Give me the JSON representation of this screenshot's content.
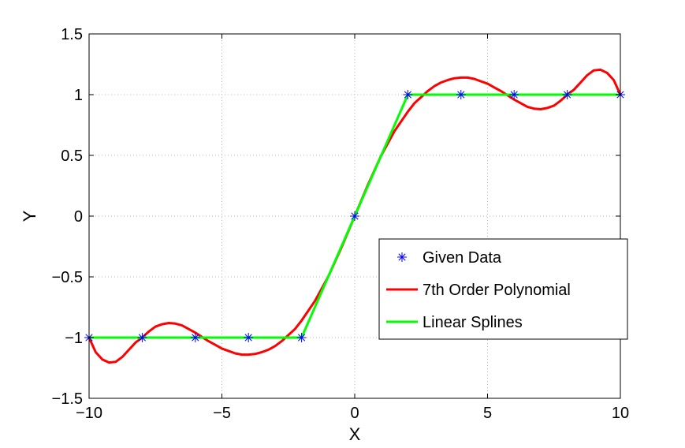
{
  "chart_data": {
    "type": "line",
    "title": "",
    "xlabel": "X",
    "ylabel": "Y",
    "xlim": [
      -10,
      10
    ],
    "ylim": [
      -1.5,
      1.5
    ],
    "xticks": [
      -10,
      -5,
      0,
      5,
      10
    ],
    "xtick_labels": [
      "−10",
      "−5",
      "0",
      "5",
      "10"
    ],
    "yticks": [
      -1.5,
      -1,
      -0.5,
      0,
      0.5,
      1,
      1.5
    ],
    "ytick_labels": [
      "−1.5",
      "−1",
      "−0.5",
      "0",
      "0.5",
      "1",
      "1.5"
    ],
    "grid": true,
    "legend_position": "lower-right",
    "series": [
      {
        "name": "Given Data",
        "kind": "scatter",
        "marker": "asterisk",
        "color": "#0000ff",
        "x": [
          -10,
          -8,
          -6,
          -4,
          -2,
          0,
          2,
          4,
          6,
          8,
          10
        ],
        "y": [
          -1,
          -1,
          -1,
          -1,
          -1,
          0,
          1,
          1,
          1,
          1,
          1
        ]
      },
      {
        "name": "7th Order Polynomial",
        "kind": "line",
        "color": "#ff0000",
        "x": [
          -10,
          -9.75,
          -9.5,
          -9.25,
          -9,
          -8.75,
          -8.5,
          -8.25,
          -8,
          -7.75,
          -7.5,
          -7.25,
          -7,
          -6.75,
          -6.5,
          -6.25,
          -6,
          -5.75,
          -5.5,
          -5.25,
          -5,
          -4.75,
          -4.5,
          -4.25,
          -4,
          -3.75,
          -3.5,
          -3.25,
          -3,
          -2.75,
          -2.5,
          -2.25,
          -2,
          -1.5,
          -1,
          -0.5,
          0,
          0.5,
          1,
          1.5,
          2,
          2.25,
          2.5,
          2.75,
          3,
          3.25,
          3.5,
          3.75,
          4,
          4.25,
          4.5,
          4.75,
          5,
          5.25,
          5.5,
          5.75,
          6,
          6.25,
          6.5,
          6.75,
          7,
          7.25,
          7.5,
          7.75,
          8,
          8.25,
          8.5,
          8.75,
          9,
          9.25,
          9.5,
          9.75,
          10
        ],
        "y": [
          -1,
          -1.12,
          -1.18,
          -1.205,
          -1.2,
          -1.16,
          -1.1,
          -1.04,
          -1,
          -0.95,
          -0.91,
          -0.89,
          -0.88,
          -0.885,
          -0.9,
          -0.93,
          -0.96,
          -0.995,
          -1.03,
          -1.06,
          -1.09,
          -1.11,
          -1.13,
          -1.14,
          -1.14,
          -1.135,
          -1.12,
          -1.1,
          -1.07,
          -1.03,
          -0.98,
          -0.93,
          -0.86,
          -0.7,
          -0.5,
          -0.26,
          0,
          0.26,
          0.5,
          0.7,
          0.86,
          0.93,
          0.98,
          1.03,
          1.07,
          1.1,
          1.12,
          1.135,
          1.14,
          1.14,
          1.13,
          1.11,
          1.09,
          1.06,
          1.03,
          0.995,
          0.96,
          0.93,
          0.9,
          0.885,
          0.88,
          0.89,
          0.91,
          0.95,
          1,
          1.04,
          1.1,
          1.16,
          1.2,
          1.205,
          1.18,
          1.12,
          1
        ]
      },
      {
        "name": "Linear Splines",
        "kind": "line",
        "color": "#00ff00",
        "x": [
          -10,
          -8,
          -6,
          -4,
          -2,
          0,
          2,
          4,
          6,
          8,
          10
        ],
        "y": [
          -1,
          -1,
          -1,
          -1,
          -1,
          0,
          1,
          1,
          1,
          1,
          1
        ]
      }
    ]
  }
}
